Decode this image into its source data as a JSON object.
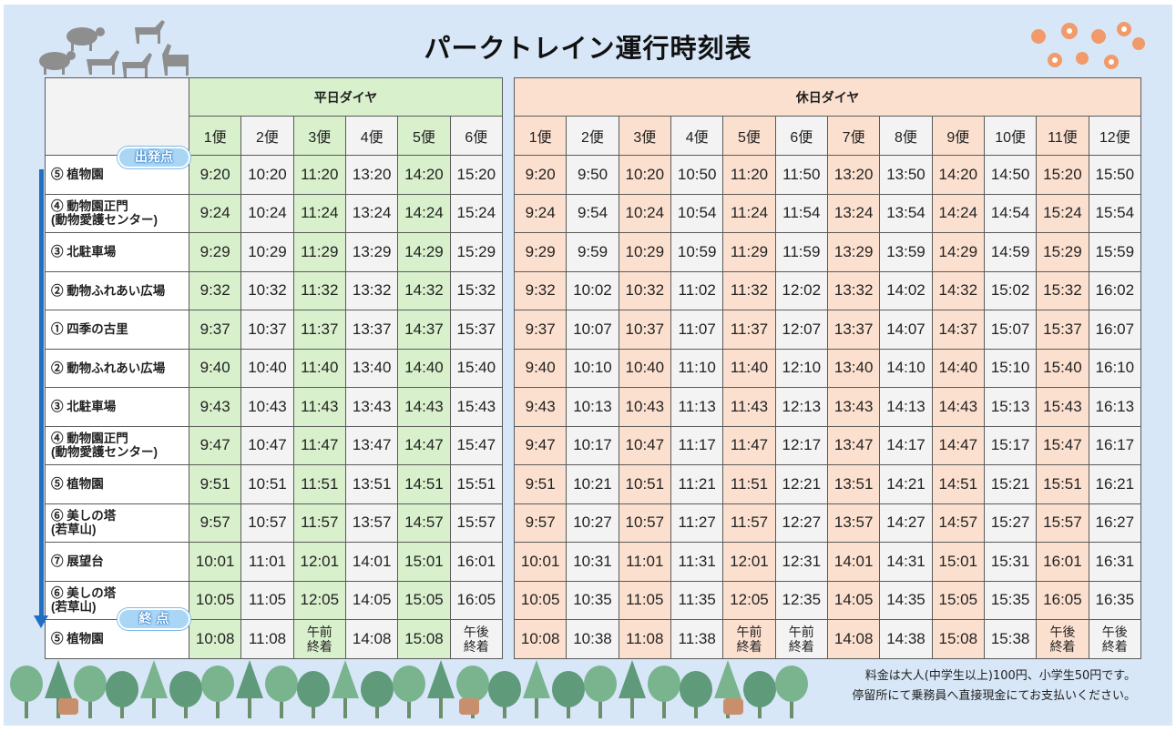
{
  "title": "パークトレイン運行時刻表",
  "colors": {
    "weekday_highlight": "#d8f0cc",
    "holiday_highlight": "#fce0cf",
    "background": "#d7e7f7",
    "arrow": "#1f6fc5"
  },
  "badges": {
    "start": "出発点",
    "end": "終 点"
  },
  "stations": [
    {
      "name": "⑤ 植物園",
      "sub": ""
    },
    {
      "name": "④ 動物園正門",
      "sub": "(動物愛護センター)"
    },
    {
      "name": "③ 北駐車場",
      "sub": ""
    },
    {
      "name": "② 動物ふれあい広場",
      "sub": ""
    },
    {
      "name": "① 四季の古里",
      "sub": ""
    },
    {
      "name": "② 動物ふれあい広場",
      "sub": ""
    },
    {
      "name": "③ 北駐車場",
      "sub": ""
    },
    {
      "name": "④ 動物園正門",
      "sub": "(動物愛護センター)"
    },
    {
      "name": "⑤ 植物園",
      "sub": ""
    },
    {
      "name": "⑥ 美しの塔",
      "sub": "(若草山)"
    },
    {
      "name": "⑦ 展望台",
      "sub": ""
    },
    {
      "name": "⑥ 美しの塔",
      "sub": "(若草山)"
    },
    {
      "name": "⑤ 植物園",
      "sub": ""
    }
  ],
  "weekday": {
    "label": "平日ダイヤ",
    "trips": [
      "1便",
      "2便",
      "3便",
      "4便",
      "5便",
      "6便"
    ],
    "rows": [
      [
        "9:20",
        "10:20",
        "11:20",
        "13:20",
        "14:20",
        "15:20"
      ],
      [
        "9:24",
        "10:24",
        "11:24",
        "13:24",
        "14:24",
        "15:24"
      ],
      [
        "9:29",
        "10:29",
        "11:29",
        "13:29",
        "14:29",
        "15:29"
      ],
      [
        "9:32",
        "10:32",
        "11:32",
        "13:32",
        "14:32",
        "15:32"
      ],
      [
        "9:37",
        "10:37",
        "11:37",
        "13:37",
        "14:37",
        "15:37"
      ],
      [
        "9:40",
        "10:40",
        "11:40",
        "13:40",
        "14:40",
        "15:40"
      ],
      [
        "9:43",
        "10:43",
        "11:43",
        "13:43",
        "14:43",
        "15:43"
      ],
      [
        "9:47",
        "10:47",
        "11:47",
        "13:47",
        "14:47",
        "15:47"
      ],
      [
        "9:51",
        "10:51",
        "11:51",
        "13:51",
        "14:51",
        "15:51"
      ],
      [
        "9:57",
        "10:57",
        "11:57",
        "13:57",
        "14:57",
        "15:57"
      ],
      [
        "10:01",
        "11:01",
        "12:01",
        "14:01",
        "15:01",
        "16:01"
      ],
      [
        "10:05",
        "11:05",
        "12:05",
        "14:05",
        "15:05",
        "16:05"
      ],
      [
        "10:08",
        "11:08",
        "午前\n終着",
        "14:08",
        "15:08",
        "午後\n終着"
      ]
    ]
  },
  "holiday": {
    "label": "休日ダイヤ",
    "trips": [
      "1便",
      "2便",
      "3便",
      "4便",
      "5便",
      "6便",
      "7便",
      "8便",
      "9便",
      "10便",
      "11便",
      "12便"
    ],
    "rows": [
      [
        "9:20",
        "9:50",
        "10:20",
        "10:50",
        "11:20",
        "11:50",
        "13:20",
        "13:50",
        "14:20",
        "14:50",
        "15:20",
        "15:50"
      ],
      [
        "9:24",
        "9:54",
        "10:24",
        "10:54",
        "11:24",
        "11:54",
        "13:24",
        "13:54",
        "14:24",
        "14:54",
        "15:24",
        "15:54"
      ],
      [
        "9:29",
        "9:59",
        "10:29",
        "10:59",
        "11:29",
        "11:59",
        "13:29",
        "13:59",
        "14:29",
        "14:59",
        "15:29",
        "15:59"
      ],
      [
        "9:32",
        "10:02",
        "10:32",
        "11:02",
        "11:32",
        "12:02",
        "13:32",
        "14:02",
        "14:32",
        "15:02",
        "15:32",
        "16:02"
      ],
      [
        "9:37",
        "10:07",
        "10:37",
        "11:07",
        "11:37",
        "12:07",
        "13:37",
        "14:07",
        "14:37",
        "15:07",
        "15:37",
        "16:07"
      ],
      [
        "9:40",
        "10:10",
        "10:40",
        "11:10",
        "11:40",
        "12:10",
        "13:40",
        "14:10",
        "14:40",
        "15:10",
        "15:40",
        "16:10"
      ],
      [
        "9:43",
        "10:13",
        "10:43",
        "11:13",
        "11:43",
        "12:13",
        "13:43",
        "14:13",
        "14:43",
        "15:13",
        "15:43",
        "16:13"
      ],
      [
        "9:47",
        "10:17",
        "10:47",
        "11:17",
        "11:47",
        "12:17",
        "13:47",
        "14:17",
        "14:47",
        "15:17",
        "15:47",
        "16:17"
      ],
      [
        "9:51",
        "10:21",
        "10:51",
        "11:21",
        "11:51",
        "12:21",
        "13:51",
        "14:21",
        "14:51",
        "15:21",
        "15:51",
        "16:21"
      ],
      [
        "9:57",
        "10:27",
        "10:57",
        "11:27",
        "11:57",
        "12:27",
        "13:57",
        "14:27",
        "14:57",
        "15:27",
        "15:57",
        "16:27"
      ],
      [
        "10:01",
        "10:31",
        "11:01",
        "11:31",
        "12:01",
        "12:31",
        "14:01",
        "14:31",
        "15:01",
        "15:31",
        "16:01",
        "16:31"
      ],
      [
        "10:05",
        "10:35",
        "11:05",
        "11:35",
        "12:05",
        "12:35",
        "14:05",
        "14:35",
        "15:05",
        "15:35",
        "16:05",
        "16:35"
      ],
      [
        "10:08",
        "10:38",
        "11:08",
        "11:38",
        "午前\n終着",
        "午前\n終着",
        "14:08",
        "14:38",
        "15:08",
        "15:38",
        "午後\n終着",
        "午後\n終着"
      ]
    ]
  },
  "notes": [
    "料金は大人(中学生以上)100円、小学生50円です。",
    "停留所にて乗務員へ直接現金にてお支払いください。"
  ]
}
